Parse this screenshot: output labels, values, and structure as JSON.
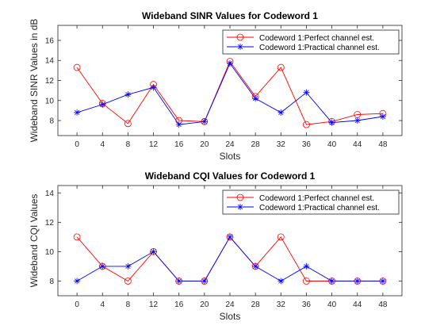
{
  "chart_data": [
    {
      "type": "line",
      "title": "Wideband SINR Values for Codeword 1",
      "xlabel": "Slots",
      "ylabel": "Wideband SINR Values in dB",
      "x": [
        0,
        4,
        8,
        12,
        16,
        20,
        24,
        28,
        32,
        36,
        40,
        44,
        48
      ],
      "xticks": [
        "0",
        "4",
        "8",
        "12",
        "16",
        "20",
        "24",
        "28",
        "32",
        "36",
        "40",
        "44",
        "48"
      ],
      "xlim": [
        -3,
        51
      ],
      "ylim": [
        6.5,
        17.5
      ],
      "yticks": [
        "8",
        "10",
        "12",
        "14",
        "16"
      ],
      "legend_position": "top-right",
      "series": [
        {
          "name": "Codeword 1:Perfect channel est.",
          "color": "#ff0000",
          "marker": "circle",
          "values": [
            13.3,
            9.7,
            7.7,
            11.6,
            8.0,
            7.9,
            13.9,
            10.4,
            13.3,
            7.6,
            7.9,
            8.6,
            8.7
          ]
        },
        {
          "name": "Codeword 1:Practical channel est.",
          "color": "#0000ff",
          "marker": "asterisk",
          "values": [
            8.8,
            9.6,
            10.6,
            11.3,
            7.6,
            7.9,
            13.7,
            10.2,
            8.8,
            10.8,
            7.8,
            8.0,
            8.4
          ]
        }
      ]
    },
    {
      "type": "line",
      "title": "Wideband CQI Values for Codeword 1",
      "xlabel": "Slots",
      "ylabel": "Wideband CQI Values",
      "x": [
        0,
        4,
        8,
        12,
        16,
        20,
        24,
        28,
        32,
        36,
        40,
        44,
        48
      ],
      "xticks": [
        "0",
        "4",
        "8",
        "12",
        "16",
        "20",
        "24",
        "28",
        "32",
        "36",
        "40",
        "44",
        "48"
      ],
      "xlim": [
        -3,
        51
      ],
      "ylim": [
        7,
        14.5
      ],
      "yticks": [
        "8",
        "10",
        "12",
        "14"
      ],
      "legend_position": "top-right",
      "series": [
        {
          "name": "Codeword 1:Perfect channel est.",
          "color": "#ff0000",
          "marker": "circle",
          "values": [
            11,
            9,
            8,
            10,
            8,
            8,
            11,
            9,
            11,
            8,
            8,
            8,
            8
          ]
        },
        {
          "name": "Codeword 1:Practical channel est.",
          "color": "#0000ff",
          "marker": "asterisk",
          "values": [
            8,
            9,
            9,
            10,
            8,
            8,
            11,
            9,
            8,
            9,
            8,
            8,
            8
          ]
        }
      ]
    }
  ]
}
